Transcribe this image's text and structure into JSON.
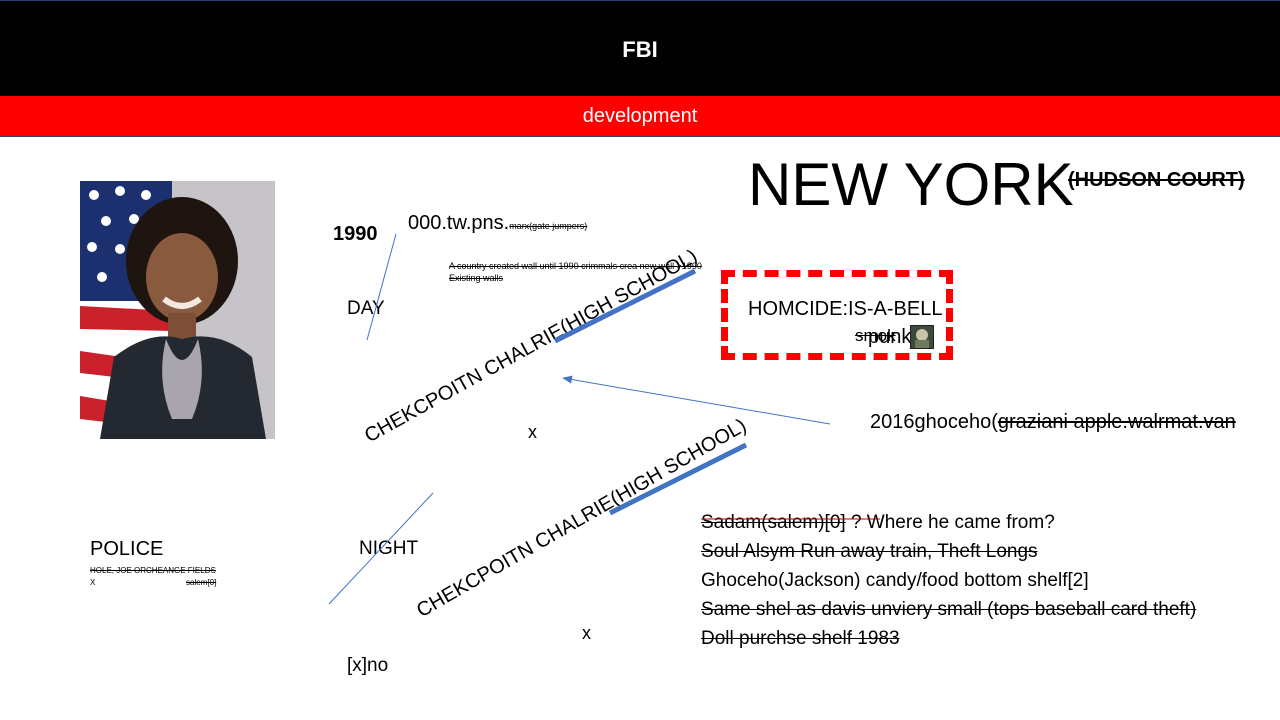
{
  "header": {
    "title": "FBI"
  },
  "subheader": {
    "title": "development"
  },
  "headline": {
    "city": "NEW YORK",
    "court": "(HUDSON COURT)"
  },
  "year": "1990",
  "tw": {
    "main": "000.tw.pns.",
    "note": "marx(gate jumpers)"
  },
  "wall_note": {
    "line1": "A country created wall until 1990 crimmals crea new wall >1990",
    "line2": "Existing walls"
  },
  "day_label": "DAY",
  "night_label": "NIGHT",
  "checkpoint_1": "CHEKCPOITN CHALRIE(HIGH SCHOOL)",
  "checkpoint_2": "CHEKCPOITN CHALRIE(HIGH SCHOOL)",
  "x_mark_1": "x",
  "x_mark_2": "x",
  "xno": "[x]no",
  "homicide": {
    "title": "HOMCIDE:IS-A-BELL",
    "under_struck": "smok",
    "under_overlay": "punks"
  },
  "ghoceho_2016": {
    "plain": "2016ghoceho(",
    "struck": "graziani apple.walrmat.van"
  },
  "police": {
    "title": "POLICE",
    "fields": "HOLE, JOE ORCHEANGE FIELDS",
    "x": "X",
    "salem": "salem[0]"
  },
  "notes": [
    {
      "struck": "Sadam(salem)[0]",
      "plain": " ? Where he came from?"
    },
    {
      "struck": "Soul Alsym Run away train, Theft Longs ",
      "plain": ""
    },
    {
      "struck": "",
      "plain": "Ghoceho(Jackson) candy/food bottom shelf[2]"
    },
    {
      "struck": "Same shel as davis unviery small (tops baseball card theft)",
      "plain": ""
    },
    {
      "struck": "Doll purchse shelf 1983",
      "plain": ""
    }
  ],
  "colors": {
    "header_bg": "#000000",
    "subheader_bg": "#ff0000",
    "box_border": "#ff0000",
    "stroke_blue": "#4472c4"
  }
}
